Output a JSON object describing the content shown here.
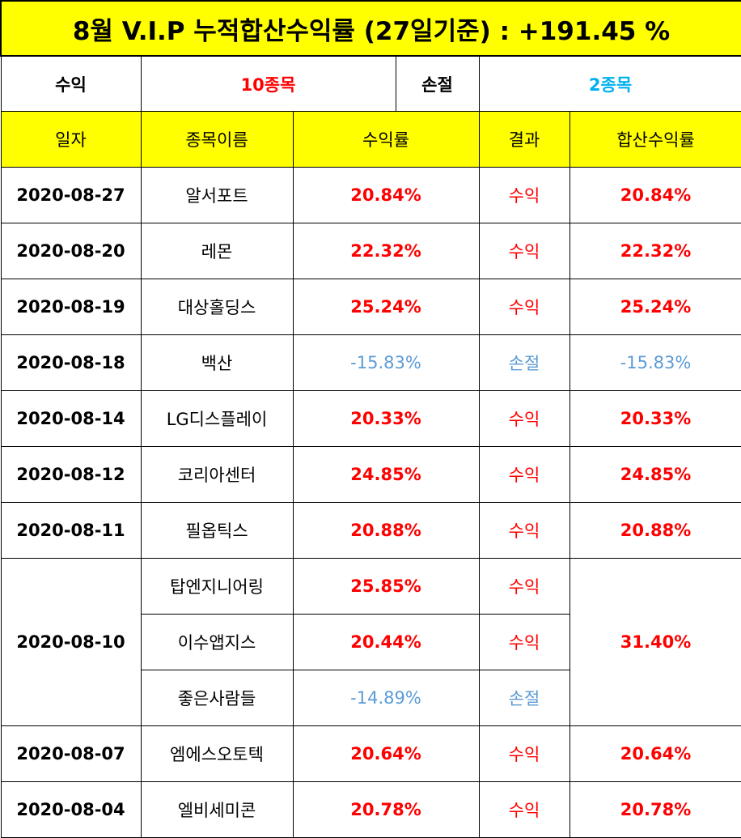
{
  "title": "8월 V.I.P 누적합산수익률 (27일기준) : +191.45 %",
  "summary": {
    "profit_label": "수익",
    "profit_value": "10종목",
    "loss_label": "손절",
    "loss_value": "2종목"
  },
  "headers": {
    "date": "일자",
    "stock": "종목이름",
    "rate": "수익률",
    "result": "결과",
    "total": "합산수익률"
  },
  "rows": [
    {
      "date": "2020-08-27",
      "stock": "알서포트",
      "rate": "20.84%",
      "result": "수익",
      "total": "20.84%"
    },
    {
      "date": "2020-08-20",
      "stock": "레몬",
      "rate": "22.32%",
      "result": "수익",
      "total": "22.32%"
    },
    {
      "date": "2020-08-19",
      "stock": "대상홀딩스",
      "rate": "25.24%",
      "result": "수익",
      "total": "25.24%"
    },
    {
      "date": "2020-08-18",
      "stock": "백산",
      "rate": "-15.83%",
      "result": "손절",
      "total": "-15.83%"
    },
    {
      "date": "2020-08-14",
      "stock": "LG디스플레이",
      "rate": "20.33%",
      "result": "수익",
      "total": "20.33%"
    },
    {
      "date": "2020-08-12",
      "stock": "코리아센터",
      "rate": "24.85%",
      "result": "수익",
      "total": "24.85%"
    },
    {
      "date": "2020-08-11",
      "stock": "필옵틱스",
      "rate": "20.88%",
      "result": "수익",
      "total": "20.88%"
    }
  ],
  "group": {
    "date": "2020-08-10",
    "total": "31.40%",
    "items": [
      {
        "stock": "탑엔지니어링",
        "rate": "25.85%",
        "result": "수익"
      },
      {
        "stock": "이수앱지스",
        "rate": "20.44%",
        "result": "수익"
      },
      {
        "stock": "좋은사람들",
        "rate": "-14.89%",
        "result": "손절"
      }
    ]
  },
  "rows_after": [
    {
      "date": "2020-08-07",
      "stock": "엠에스오토텍",
      "rate": "20.64%",
      "result": "수익",
      "total": "20.64%"
    },
    {
      "date": "2020-08-04",
      "stock": "엘비세미콘",
      "rate": "20.78%",
      "result": "수익",
      "total": "20.78%"
    }
  ],
  "colors": {
    "header_bg": "#ffff00",
    "profit": "#ff0000",
    "loss": "#5b9bd5"
  }
}
